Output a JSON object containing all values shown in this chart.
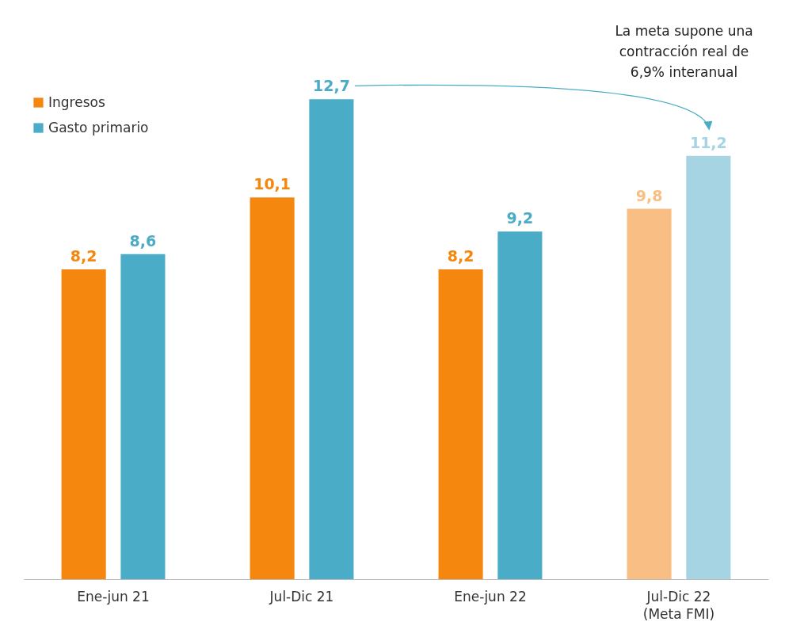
{
  "chart_data": {
    "type": "bar",
    "categories": [
      "Ene-jun 21",
      "Jul-Dic 21",
      "Ene-jun 22",
      "Jul-Dic 22\n(Meta FMI)"
    ],
    "series": [
      {
        "name": "Ingresos",
        "color": "#f5870f",
        "colors": [
          "#f5870f",
          "#f5870f",
          "#f5870f",
          "#f8be84"
        ],
        "values": [
          8.2,
          10.1,
          8.2,
          9.8
        ],
        "value_labels": [
          "8,2",
          "10,1",
          "8,2",
          "9,8"
        ]
      },
      {
        "name": "Gasto primario",
        "color": "#4aacc6",
        "colors": [
          "#4aacc6",
          "#4aacc6",
          "#4aacc6",
          "#a6d4e3"
        ],
        "values": [
          8.6,
          12.7,
          9.2,
          11.2
        ],
        "value_labels": [
          "8,6",
          "12,7",
          "9,2",
          "11,2"
        ]
      }
    ],
    "legend": "top left",
    "annotations": [
      "La meta supone una\ncontracción real de\n6,9% interanual"
    ]
  }
}
